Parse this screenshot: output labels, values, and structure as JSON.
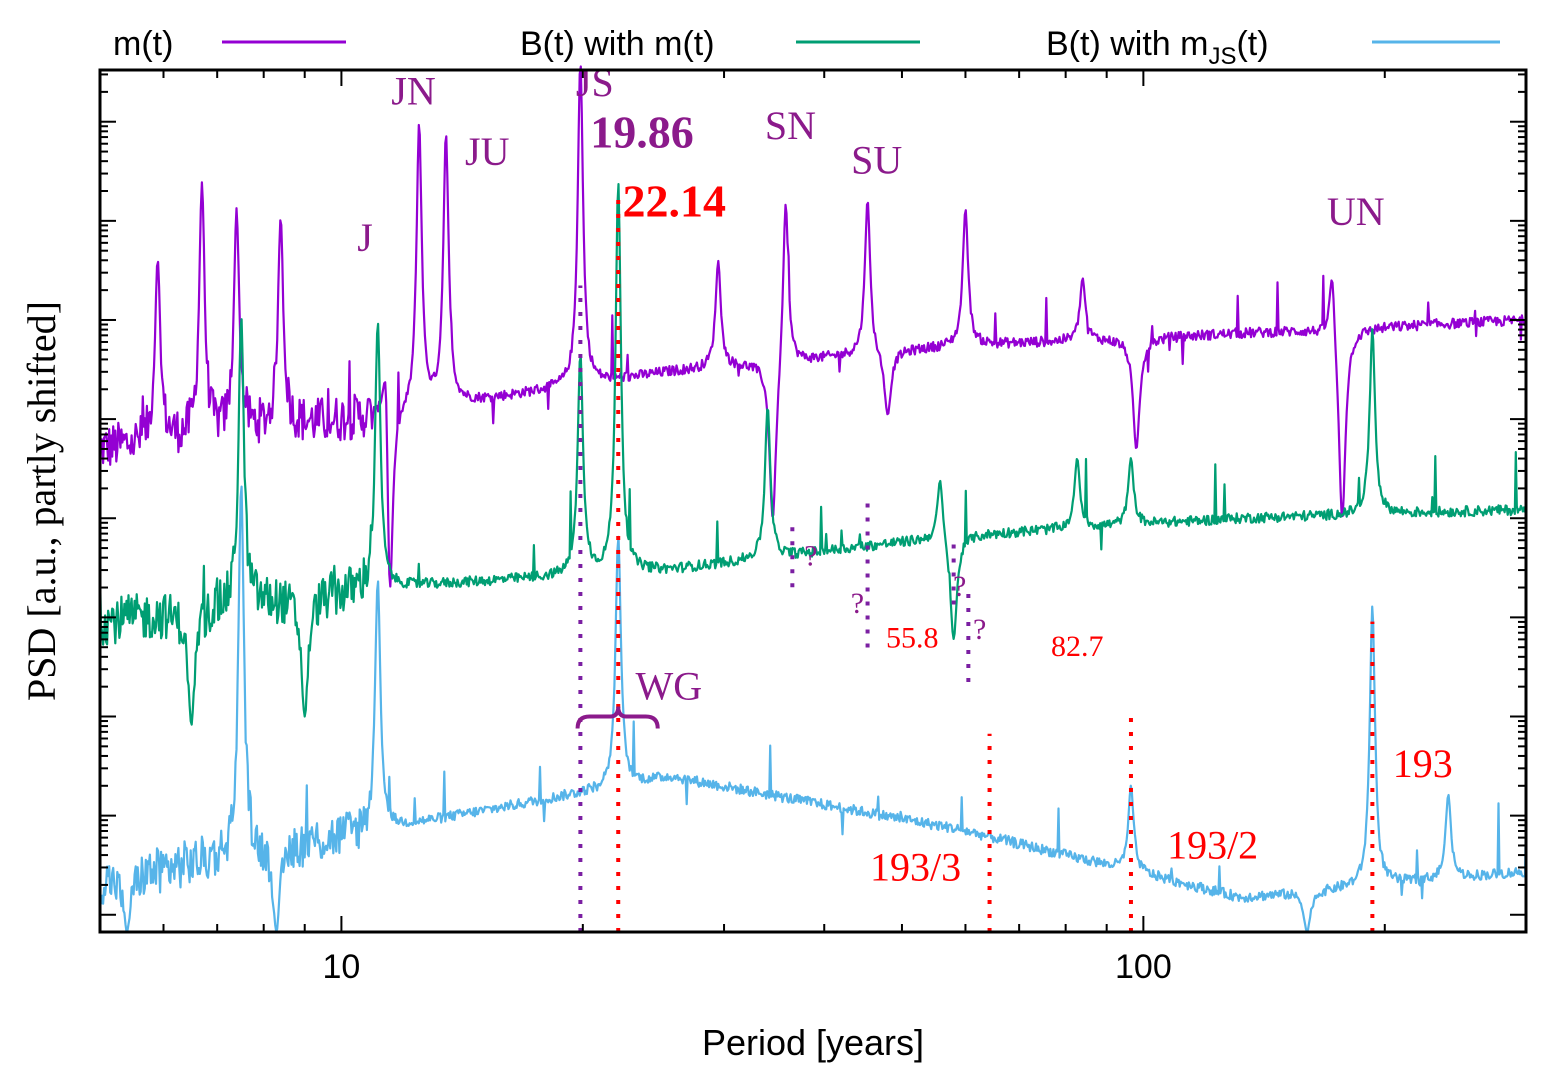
{
  "chart_data": {
    "type": "line",
    "title": "",
    "xlabel": "Period [years]",
    "ylabel": "PSD [a.u., partly shifted]",
    "xscale": "log",
    "xlim": [
      5.0,
      300.0
    ],
    "ylim": [
      0,
      10
    ],
    "yscale_note": "log scale, arbitrary units, no y tick labels",
    "x_tick_labels": [
      "10",
      "100"
    ],
    "x_ticks": [
      10,
      100
    ],
    "legend_position": "top",
    "colors": {
      "m": "#9400d3",
      "B_m": "#009e73",
      "B_mJS": "#56b4e9",
      "vline_purple": "#7b1fa2",
      "vline_red": "#ff0000",
      "label_purple": "#8b1a8b",
      "label_red": "#ff0000"
    },
    "legend": [
      {
        "key": "m",
        "label": "m(t)"
      },
      {
        "key": "B_m",
        "label": "B(t) with m(t)"
      },
      {
        "key": "B_mJS",
        "label_main": "B(t) with m",
        "label_sub": "JS",
        "label_tail": "(t)"
      }
    ],
    "series": [
      {
        "key": "m",
        "name": "m(t)",
        "x_range": [
          5.0,
          300.0
        ],
        "baseline": [
          5.6,
          6.0,
          6.5,
          6.8,
          6.95,
          7.1
        ],
        "peaks": [
          [
            5.9,
            7.8
          ],
          [
            6.7,
            8.7
          ],
          [
            7.4,
            8.4
          ],
          [
            8.4,
            8.3
          ],
          [
            11.4,
            8.6
          ],
          [
            12.5,
            9.5
          ],
          [
            13.5,
            9.3
          ],
          [
            19.86,
            10.1
          ],
          [
            29.5,
            7.8
          ],
          [
            35.8,
            8.8
          ],
          [
            45.3,
            8.6
          ],
          [
            60.0,
            8.4
          ],
          [
            84.0,
            7.6
          ],
          [
            172.0,
            8.0
          ]
        ],
        "dips": [
          [
            11.5,
            4.0
          ],
          [
            34.5,
            4.8
          ],
          [
            48.0,
            6.0
          ],
          [
            98.0,
            5.6
          ],
          [
            177.0,
            4.8
          ]
        ]
      },
      {
        "key": "B_m",
        "name": "B(t) with m(t)",
        "x_range": [
          5.0,
          300.0
        ],
        "baseline": [
          3.6,
          4.0,
          4.2,
          4.6,
          4.8,
          4.9
        ],
        "peaks": [
          [
            7.5,
            7.2
          ],
          [
            11.1,
            7.1
          ],
          [
            19.86,
            6.7
          ],
          [
            22.14,
            8.7
          ],
          [
            34.0,
            6.1
          ],
          [
            55.8,
            5.4
          ],
          [
            82.7,
            5.5
          ],
          [
            96.5,
            5.5
          ],
          [
            193.0,
            7.0
          ],
          [
            240.0,
            4.8
          ]
        ],
        "dips": [
          [
            6.5,
            2.4
          ],
          [
            9.0,
            2.5
          ],
          [
            58.0,
            3.4
          ]
        ]
      },
      {
        "key": "B_mJS",
        "name": "B(t) with mJS(t)",
        "x_range": [
          5.0,
          300.0
        ],
        "baseline": [
          0.6,
          1.2,
          1.8,
          1.2,
          0.4,
          0.7
        ],
        "peaks": [
          [
            7.5,
            5.3
          ],
          [
            11.1,
            4.1
          ],
          [
            22.14,
            4.6
          ],
          [
            64.3,
            0.4
          ],
          [
            96.5,
            1.7
          ],
          [
            193.0,
            3.8
          ],
          [
            240.0,
            1.6
          ]
        ],
        "dips": [
          [
            8.3,
            0.0
          ],
          [
            5.4,
            0.0
          ],
          [
            160.0,
            0.0
          ]
        ]
      }
    ],
    "vertical_markers": [
      {
        "x": 19.86,
        "from": 0.0,
        "to": 7.5,
        "color": "purple"
      },
      {
        "x": 22.14,
        "from": 0.0,
        "to": 8.5,
        "color": "red"
      },
      {
        "x": 36.5,
        "from": 4.0,
        "to": 4.7,
        "color": "purple"
      },
      {
        "x": 45.3,
        "from": 3.3,
        "to": 5.0,
        "color": "purple"
      },
      {
        "x": 58.0,
        "from": 3.8,
        "to": 4.6,
        "color": "purple"
      },
      {
        "x": 60.5,
        "from": 2.9,
        "to": 4.0,
        "color": "purple"
      },
      {
        "x": 64.3,
        "from": 0.0,
        "to": 2.3,
        "color": "red"
      },
      {
        "x": 96.5,
        "from": 0.0,
        "to": 2.5,
        "color": "red"
      },
      {
        "x": 193.0,
        "from": 0.0,
        "to": 3.6,
        "color": "red"
      }
    ],
    "annotations": [
      {
        "text": "J",
        "x": 10.7,
        "y": 7.9,
        "color": "purple",
        "bold": false
      },
      {
        "text": "JN",
        "x": 12.3,
        "y": 9.6,
        "color": "purple",
        "bold": false
      },
      {
        "text": "JU",
        "x": 15.2,
        "y": 8.9,
        "color": "purple",
        "bold": false
      },
      {
        "text": "JS",
        "x": 20.7,
        "y": 9.7,
        "color": "purple",
        "bold": false
      },
      {
        "text": "19.86",
        "x": 23.7,
        "y": 9.1,
        "color": "purple",
        "bold": true
      },
      {
        "text": "SN",
        "x": 36.3,
        "y": 9.2,
        "color": "purple",
        "bold": false
      },
      {
        "text": "SU",
        "x": 46.5,
        "y": 8.8,
        "color": "purple",
        "bold": false
      },
      {
        "text": "UN",
        "x": 184.0,
        "y": 8.2,
        "color": "purple",
        "bold": false
      },
      {
        "text": "22.14",
        "x": 26.0,
        "y": 8.3,
        "color": "red",
        "bold": true
      },
      {
        "text": "WG",
        "x": 25.6,
        "y": 2.7,
        "color": "purple",
        "bold": false
      },
      {
        "text": "?",
        "x": 38.5,
        "y": 4.25,
        "color": "purple",
        "bold": false
      },
      {
        "text": "?",
        "x": 44.0,
        "y": 3.7,
        "color": "purple",
        "bold": false
      },
      {
        "text": "?",
        "x": 59.0,
        "y": 3.9,
        "color": "purple",
        "bold": false
      },
      {
        "text": "?",
        "x": 62.5,
        "y": 3.4,
        "color": "purple",
        "bold": false
      },
      {
        "text": "55.8",
        "x": 51.5,
        "y": 3.3,
        "color": "red",
        "bold": false
      },
      {
        "text": "82.7",
        "x": 82.7,
        "y": 3.2,
        "color": "red",
        "bold": false
      },
      {
        "text": "193/3",
        "x": 52.0,
        "y": 0.6,
        "color": "red",
        "bold": false
      },
      {
        "text": "193/2",
        "x": 122.0,
        "y": 0.85,
        "color": "red",
        "bold": false
      },
      {
        "text": "193",
        "x": 223.0,
        "y": 1.8,
        "color": "red",
        "bold": false
      }
    ]
  }
}
